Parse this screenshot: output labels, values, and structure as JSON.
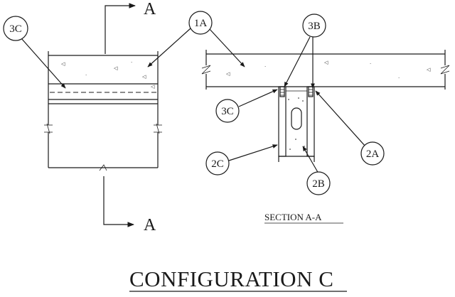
{
  "title": "CONFIGURATION C",
  "section_title": "SECTION A-A",
  "section_marks": {
    "top": "A",
    "bottom": "A"
  },
  "callouts": {
    "c3c_left": "3C",
    "c1a": "1A",
    "c3b": "3B",
    "c3c_right": "3C",
    "c2a": "2A",
    "c2c": "2C",
    "c2b": "2B"
  },
  "colors": {
    "ink": "#1a1a1a",
    "background": "#ffffff"
  }
}
